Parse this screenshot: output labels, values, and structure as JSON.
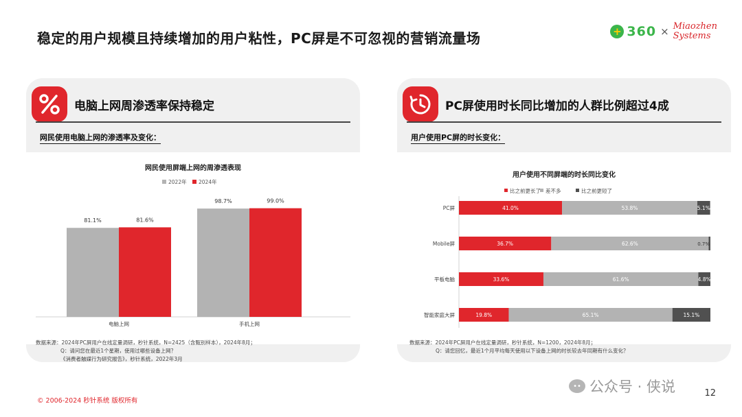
{
  "headline": "稳定的用户规模且持续增加的用户粘性，PC屏是不可忽视的营销流量场",
  "logos": {
    "brand_360": "360",
    "times": "×",
    "miaozhen_line1": "Miaozhen",
    "miaozhen_line2": "Systems"
  },
  "colors": {
    "accent": "#e0262c",
    "gray": "#b3b3b3",
    "dark": "#505050"
  },
  "left_panel": {
    "icon": "percent-icon",
    "title": "电脑上网周渗透率保持稳定",
    "subtitle": "网民使用电脑上网的渗透率及变化：",
    "source_lines": [
      "数据来源：2024年PC屏用户在线定量调研，秒针系统，N=2425（含甄别样本），2024年8月；",
      "Q：请问您在最近1个星期，使用过哪些设备上网？",
      "《消费者触媒行为研究报告》，秒针系统，2022年3月"
    ]
  },
  "right_panel": {
    "icon": "clock-icon",
    "title": "PC屏使用时长同比增加的人群比例超过4成",
    "subtitle": "用户使用PC屏的时长变化：",
    "source_lines": [
      "数据来源：2024年PC屏用户在线定量调研，秒针系统，N=1200，2024年8月；",
      "Q：请您回忆，最近1个月平均每天使用以下设备上网的时长较去年同期有什么变化？"
    ]
  },
  "chart_data": [
    {
      "type": "bar",
      "title": "网民使用屏端上网的周渗透表现",
      "categories": [
        "电脑上网",
        "手机上网"
      ],
      "series": [
        {
          "name": "2022年",
          "values": [
            81.1,
            98.7
          ],
          "labels": [
            "81.1%",
            "98.7%"
          ],
          "color": "#b3b3b3"
        },
        {
          "name": "2024年",
          "values": [
            81.6,
            99.0
          ],
          "labels": [
            "81.6%",
            "99.0%"
          ],
          "color": "#e0262c"
        }
      ],
      "ylim": [
        0,
        100
      ],
      "legend": "top",
      "grid": false
    },
    {
      "type": "bar",
      "orientation": "horizontal",
      "stacked": true,
      "title": "用户使用不同屏端的时长同比变化",
      "categories": [
        "PC屏",
        "Mobile屏",
        "平板电脑",
        "智能家庭大屏"
      ],
      "series": [
        {
          "name": "比之前更长了",
          "values": [
            41.0,
            36.7,
            33.6,
            19.8
          ],
          "labels": [
            "41.0%",
            "36.7%",
            "33.6%",
            "19.8%"
          ],
          "color": "#e0262c"
        },
        {
          "name": "差不多",
          "values": [
            53.8,
            62.6,
            61.6,
            65.1
          ],
          "labels": [
            "53.8%",
            "62.6%",
            "61.6%",
            "65.1%"
          ],
          "color": "#b3b3b3"
        },
        {
          "name": "比之前更短了",
          "values": [
            5.1,
            0.7,
            4.8,
            15.1
          ],
          "labels": [
            "5.1%",
            "0.7%",
            "4.8%",
            "15.1%"
          ],
          "color": "#505050"
        }
      ],
      "xlim": [
        0,
        100
      ],
      "legend": "top",
      "grid": false
    }
  ],
  "footer": {
    "copyright": "© 2006-2024 秒针系统 版权所有",
    "page_number": "12",
    "watermark": "公众号 · 侠说"
  }
}
